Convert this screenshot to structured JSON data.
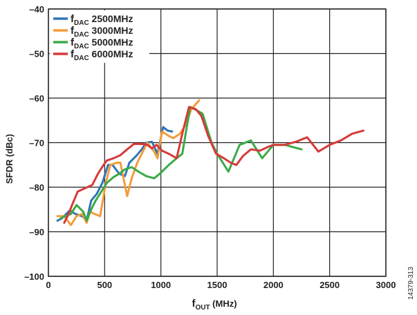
{
  "chart_data": {
    "type": "line",
    "xlabel": {
      "main": "f",
      "sub": "OUT",
      "rest": " (MHz)"
    },
    "ylabel": "SFDR (dBc)",
    "xlim": [
      0,
      3000
    ],
    "ylim": [
      -100,
      -40
    ],
    "xticks": [
      0,
      500,
      1000,
      1500,
      2000,
      2500,
      3000
    ],
    "yticks": [
      -100,
      -90,
      -80,
      -70,
      -60,
      -50,
      -40
    ],
    "grid": true,
    "legend_position": "top-left",
    "series": [
      {
        "name": "2500MHz",
        "label_main": "f",
        "label_sub": "DAC",
        "label_rest": " 2500MHz",
        "color": "#2e75b6",
        "points": [
          [
            80,
            -87.5
          ],
          [
            120,
            -87
          ],
          [
            190,
            -85.2
          ],
          [
            240,
            -86
          ],
          [
            300,
            -86.5
          ],
          [
            340,
            -87.5
          ],
          [
            380,
            -83
          ],
          [
            430,
            -81.5
          ],
          [
            480,
            -79
          ],
          [
            530,
            -75
          ],
          [
            570,
            -75
          ],
          [
            630,
            -77
          ],
          [
            680,
            -77.5
          ],
          [
            720,
            -74.5
          ],
          [
            780,
            -73
          ],
          [
            830,
            -71.5
          ],
          [
            870,
            -70
          ],
          [
            920,
            -69.8
          ],
          [
            970,
            -72.5
          ],
          [
            1020,
            -66.5
          ],
          [
            1060,
            -67.3
          ],
          [
            1100,
            -67.5
          ]
        ]
      },
      {
        "name": "3000MHz",
        "label_main": "f",
        "label_sub": "DAC",
        "label_rest": " 3000MHz",
        "color": "#f39c3a",
        "points": [
          [
            80,
            -86.5
          ],
          [
            140,
            -86.5
          ],
          [
            200,
            -88.5
          ],
          [
            250,
            -86.5
          ],
          [
            300,
            -86
          ],
          [
            340,
            -88
          ],
          [
            370,
            -85.5
          ],
          [
            410,
            -86
          ],
          [
            460,
            -86.5
          ],
          [
            510,
            -79
          ],
          [
            550,
            -75
          ],
          [
            610,
            -74.5
          ],
          [
            640,
            -74.5
          ],
          [
            700,
            -82
          ],
          [
            740,
            -78
          ],
          [
            790,
            -74.5
          ],
          [
            840,
            -72
          ],
          [
            880,
            -70
          ],
          [
            940,
            -72
          ],
          [
            970,
            -73.5
          ],
          [
            1010,
            -67.5
          ],
          [
            1070,
            -68.5
          ],
          [
            1110,
            -69
          ],
          [
            1170,
            -68
          ],
          [
            1220,
            -66
          ],
          [
            1270,
            -62.5
          ],
          [
            1340,
            -60.5
          ]
        ]
      },
      {
        "name": "5000MHz",
        "label_main": "f",
        "label_sub": "DAC",
        "label_rest": " 5000MHz",
        "color": "#3aaa46",
        "points": [
          [
            110,
            -87
          ],
          [
            150,
            -86.5
          ],
          [
            200,
            -86
          ],
          [
            250,
            -84
          ],
          [
            310,
            -85.5
          ],
          [
            340,
            -87.5
          ],
          [
            380,
            -85
          ],
          [
            420,
            -83
          ],
          [
            470,
            -81
          ],
          [
            520,
            -79
          ],
          [
            580,
            -77.7
          ],
          [
            630,
            -77
          ],
          [
            680,
            -76
          ],
          [
            740,
            -75.5
          ],
          [
            800,
            -76.5
          ],
          [
            870,
            -77.5
          ],
          [
            940,
            -78
          ],
          [
            990,
            -77
          ],
          [
            1070,
            -75
          ],
          [
            1140,
            -73.5
          ],
          [
            1190,
            -72.5
          ],
          [
            1260,
            -62
          ],
          [
            1300,
            -62.5
          ],
          [
            1370,
            -63.5
          ],
          [
            1450,
            -70
          ],
          [
            1500,
            -72.5
          ],
          [
            1600,
            -76.5
          ],
          [
            1700,
            -70.5
          ],
          [
            1800,
            -69.5
          ],
          [
            1900,
            -73.5
          ],
          [
            2000,
            -70.5
          ],
          [
            2100,
            -70.5
          ],
          [
            2250,
            -71.5
          ]
        ]
      },
      {
        "name": "6000MHz",
        "label_main": "f",
        "label_sub": "DAC",
        "label_rest": " 6000MHz",
        "color": "#d63a3a",
        "points": [
          [
            140,
            -88
          ],
          [
            180,
            -86
          ],
          [
            210,
            -84
          ],
          [
            260,
            -81
          ],
          [
            320,
            -80.3
          ],
          [
            390,
            -79.5
          ],
          [
            440,
            -77
          ],
          [
            490,
            -75
          ],
          [
            520,
            -74
          ],
          [
            580,
            -73.5
          ],
          [
            640,
            -72.8
          ],
          [
            700,
            -71.5
          ],
          [
            760,
            -70.3
          ],
          [
            830,
            -70.3
          ],
          [
            880,
            -70.5
          ],
          [
            920,
            -71.3
          ],
          [
            960,
            -70.5
          ],
          [
            1010,
            -71.8
          ],
          [
            1070,
            -72.5
          ],
          [
            1140,
            -73.5
          ],
          [
            1190,
            -68
          ],
          [
            1250,
            -62
          ],
          [
            1310,
            -62.5
          ],
          [
            1360,
            -64
          ],
          [
            1420,
            -68.5
          ],
          [
            1490,
            -72.5
          ],
          [
            1560,
            -73.5
          ],
          [
            1620,
            -74.5
          ],
          [
            1670,
            -75
          ],
          [
            1730,
            -73
          ],
          [
            1800,
            -71.5
          ],
          [
            1880,
            -71.8
          ],
          [
            1950,
            -71
          ],
          [
            2000,
            -70.5
          ],
          [
            2100,
            -70.5
          ],
          [
            2200,
            -69.8
          ],
          [
            2300,
            -68.8
          ],
          [
            2400,
            -72
          ],
          [
            2500,
            -70.5
          ],
          [
            2600,
            -69.5
          ],
          [
            2700,
            -68
          ],
          [
            2800,
            -67.3
          ]
        ]
      }
    ]
  },
  "figure_id": "14379-313"
}
